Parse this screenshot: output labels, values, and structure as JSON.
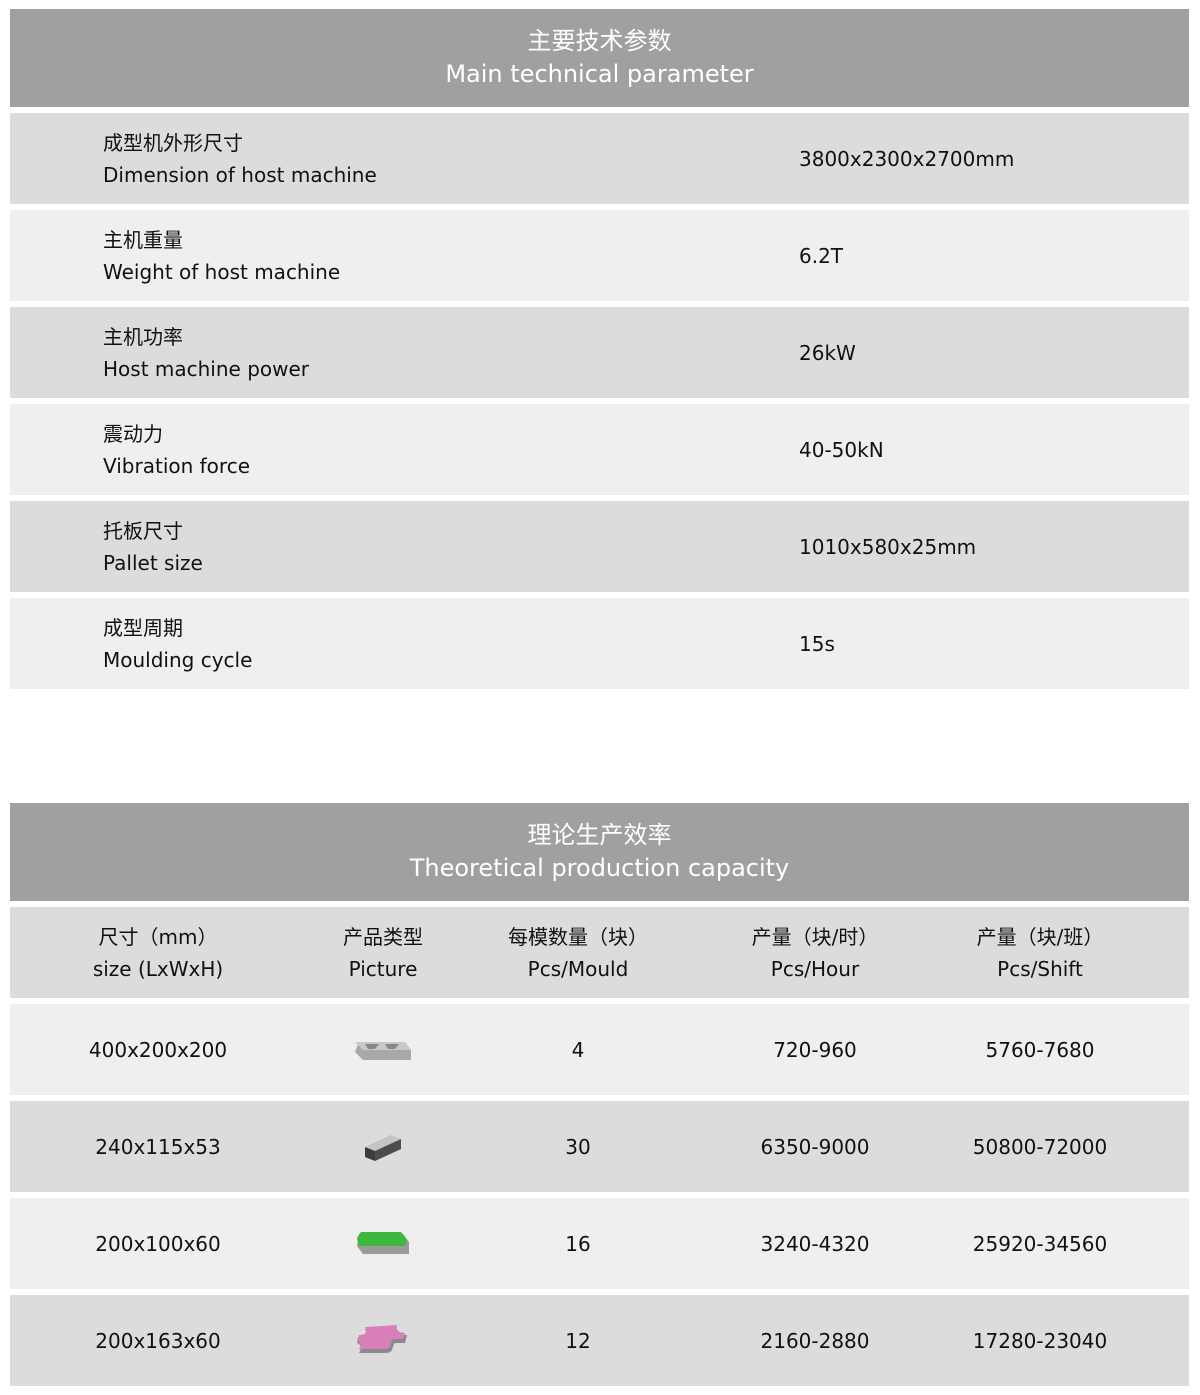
{
  "technical": {
    "title_cn": "主要技术参数",
    "title_en": "Main technical parameter",
    "rows": [
      {
        "cn": "成型机外形尺寸",
        "en": "Dimension of host machine",
        "value": "3800x2300x2700mm"
      },
      {
        "cn": "主机重量",
        "en": "Weight of host machine",
        "value": "6.2T"
      },
      {
        "cn": "主机功率",
        "en": "Host machine power",
        "value": "26kW"
      },
      {
        "cn": "震动力",
        "en": "Vibration force",
        "value": "40-50kN"
      },
      {
        "cn": "托板尺寸",
        "en": "Pallet size",
        "value": "1010x580x25mm"
      },
      {
        "cn": "成型周期",
        "en": "Moulding cycle",
        "value": "15s"
      }
    ]
  },
  "capacity": {
    "title_cn": "理论生产效率",
    "title_en": "Theoretical production capacity",
    "columns": [
      {
        "cn": "尺寸（mm）",
        "en": "size (LxWxH)"
      },
      {
        "cn": "产品类型",
        "en": "Picture"
      },
      {
        "cn": "每模数量（块）",
        "en": "Pcs/Mould"
      },
      {
        "cn": "产量（块/时）",
        "en": "Pcs/Hour"
      },
      {
        "cn": "产量（块/班）",
        "en": "Pcs/Shift"
      }
    ],
    "rows": [
      {
        "size": "400x200x200",
        "picture": "hollow-block-icon",
        "pcs_mould": "4",
        "pcs_hour": "720-960",
        "pcs_shift": "5760-7680"
      },
      {
        "size": "240x115x53",
        "picture": "solid-brick-icon",
        "pcs_mould": "30",
        "pcs_hour": "6350-9000",
        "pcs_shift": "50800-72000"
      },
      {
        "size": "200x100x60",
        "picture": "green-paver-icon",
        "pcs_mould": "16",
        "pcs_hour": "3240-4320",
        "pcs_shift": "25920-34560"
      },
      {
        "size": "200x163x60",
        "picture": "pink-interlock-paver-icon",
        "pcs_mould": "12",
        "pcs_hour": "2160-2880",
        "pcs_shift": "17280-23040"
      }
    ]
  },
  "colors": {
    "header": "#a0a0a0",
    "row_dark": "#dcdcdc",
    "row_light": "#efefef",
    "paver_green": "#3cb83c",
    "paver_pink": "#d97fb8"
  }
}
